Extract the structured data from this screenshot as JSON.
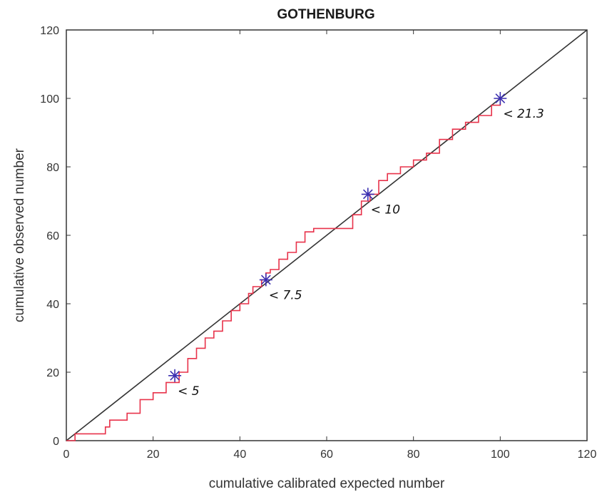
{
  "chart_data": {
    "type": "line",
    "title": "GOTHENBURG",
    "xlabel": "cumulative calibrated expected number",
    "ylabel": "cumulative observed number",
    "xlim": [
      0,
      120
    ],
    "ylim": [
      0,
      120
    ],
    "xticks": [
      0,
      20,
      40,
      60,
      80,
      100,
      120
    ],
    "yticks": [
      0,
      20,
      40,
      60,
      80,
      100,
      120
    ],
    "grid": false,
    "colors": {
      "observed": "#e8324a",
      "reference": "#333333",
      "markers": "#3b2fb0"
    },
    "series": [
      {
        "type": "line",
        "x": [
          0,
          120
        ],
        "y": [
          0,
          120
        ]
      },
      {
        "type": "step",
        "x": [
          0,
          2,
          9,
          10,
          14,
          17,
          20,
          23,
          26,
          28,
          30,
          32,
          34,
          36,
          38,
          40,
          42,
          43,
          45,
          46,
          47,
          49,
          51,
          53,
          55,
          57,
          60,
          63,
          66,
          68,
          70,
          72,
          74,
          77,
          80,
          83,
          86,
          89,
          92,
          95,
          98,
          100
        ],
        "y": [
          0,
          2,
          4,
          6,
          8,
          12,
          14,
          17,
          20,
          24,
          27,
          30,
          32,
          35,
          38,
          40,
          43,
          45,
          47,
          49,
          50,
          53,
          55,
          58,
          61,
          62,
          62,
          62,
          66,
          70,
          72,
          76,
          78,
          80,
          82,
          84,
          88,
          91,
          93,
          95,
          98,
          100
        ]
      },
      {
        "type": "scatter",
        "x": [
          25,
          46,
          69.5,
          100
        ],
        "y": [
          19,
          47,
          72,
          100
        ],
        "labels": [
          "< 5",
          "< 7.5",
          "< 10",
          "< 21.3"
        ]
      }
    ]
  }
}
